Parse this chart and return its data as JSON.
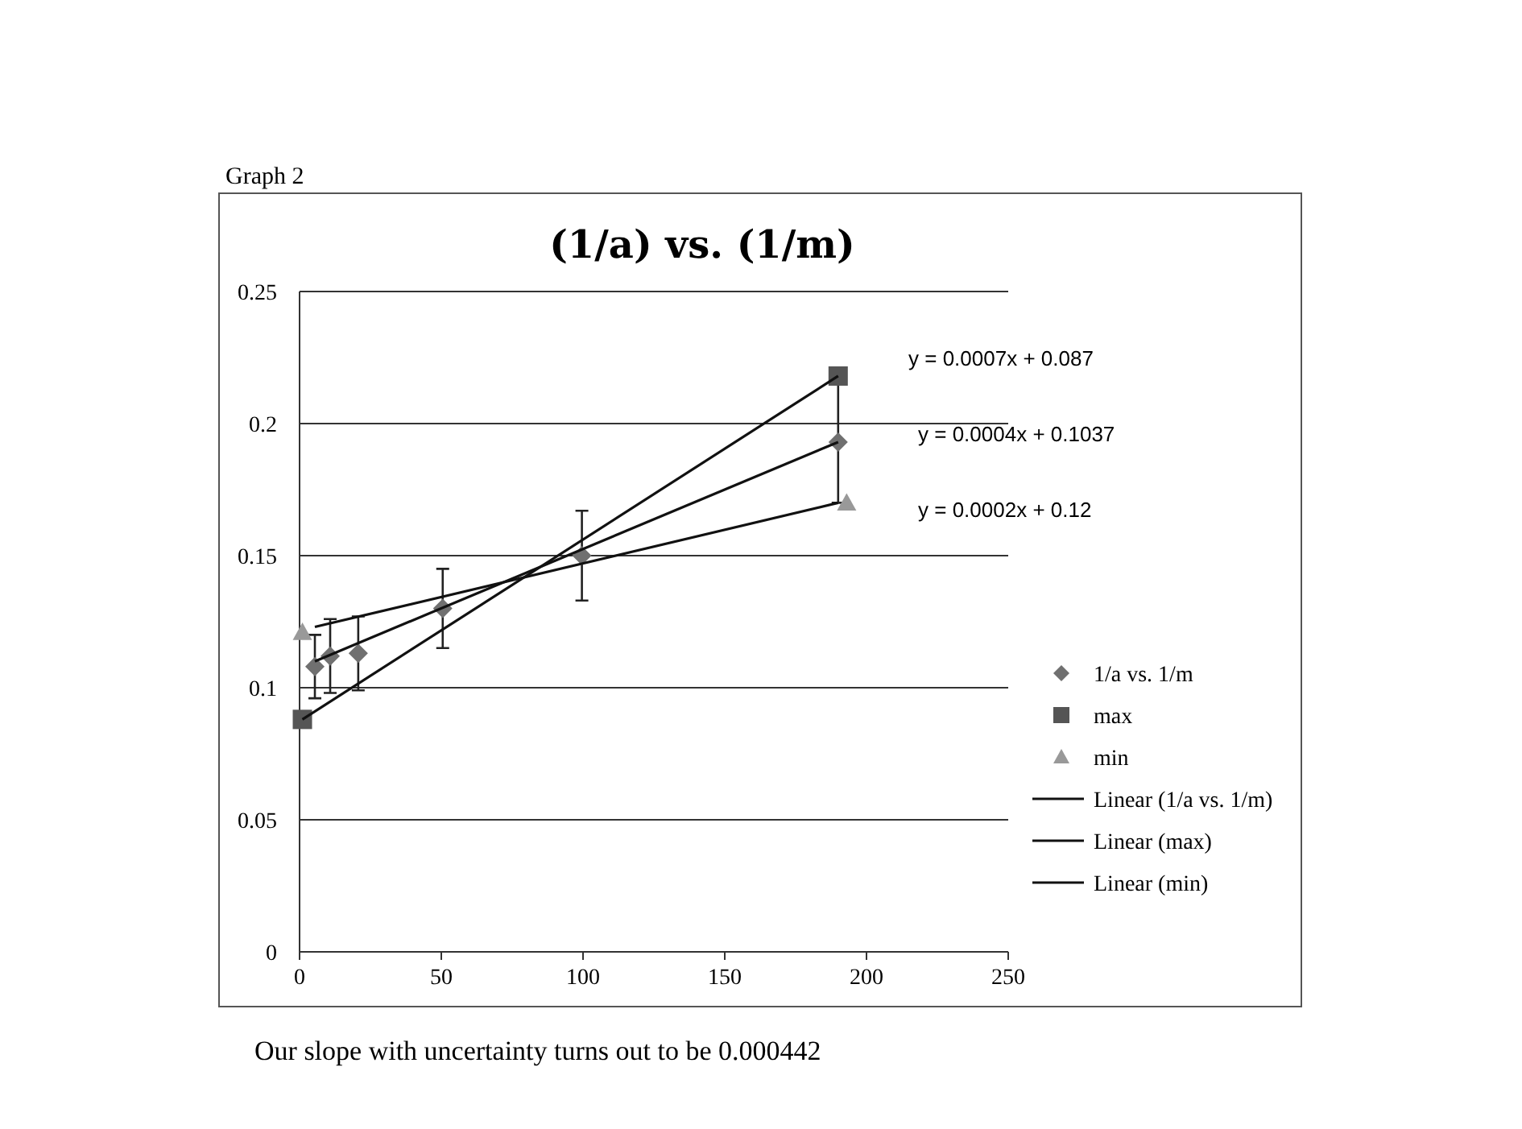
{
  "chart_data": {
    "type": "scatter",
    "title": "(1/a) vs. (1/m)",
    "annotations": [
      "Graph 2",
      "y = 0.0007x + 0.087",
      "y = 0.0004x + 0.1037",
      "y = 0.0002x + 0.12",
      "Our slope with uncertainty turns out to be 0.000442"
    ],
    "xlim": [
      0,
      250
    ],
    "xticks": [
      0,
      50,
      100,
      150,
      200,
      250
    ],
    "ylim": [
      0,
      0.25
    ],
    "yticks": [
      0,
      0.05,
      0.1,
      0.15,
      0.2,
      0.25
    ],
    "grid": "y",
    "legend": "right",
    "series": [
      {
        "name": "1/a vs. 1/m",
        "marker": "diamond",
        "color": "#707070",
        "x": [
          5.4,
          10.8,
          20.7,
          50.5,
          99.6,
          190
        ],
        "values": [
          0.108,
          0.112,
          0.113,
          0.13,
          0.15,
          0.193
        ],
        "errors": [
          0.012,
          0.014,
          0.014,
          0.015,
          0.017,
          [
            0.17,
            0.218
          ]
        ]
      },
      {
        "name": "max",
        "marker": "square",
        "color": "#555555",
        "x": [
          1,
          190
        ],
        "values": [
          0.088,
          0.218
        ]
      },
      {
        "name": "min",
        "marker": "triangle",
        "color": "#999999",
        "x": [
          1,
          193
        ],
        "values": [
          0.121,
          0.17
        ]
      },
      {
        "name": "Linear (1/a vs. 1/m)",
        "type": "line",
        "marker": "none",
        "color": "#111111",
        "x": [
          5.4,
          190
        ],
        "values": [
          0.11,
          0.193
        ]
      },
      {
        "name": "Linear (max)",
        "type": "line",
        "marker": "none",
        "color": "#111111",
        "x": [
          1,
          190
        ],
        "values": [
          0.088,
          0.218
        ]
      },
      {
        "name": "Linear (min)",
        "type": "line",
        "marker": "none",
        "color": "#111111",
        "x": [
          5.4,
          190
        ],
        "values": [
          0.123,
          0.17
        ]
      }
    ]
  }
}
